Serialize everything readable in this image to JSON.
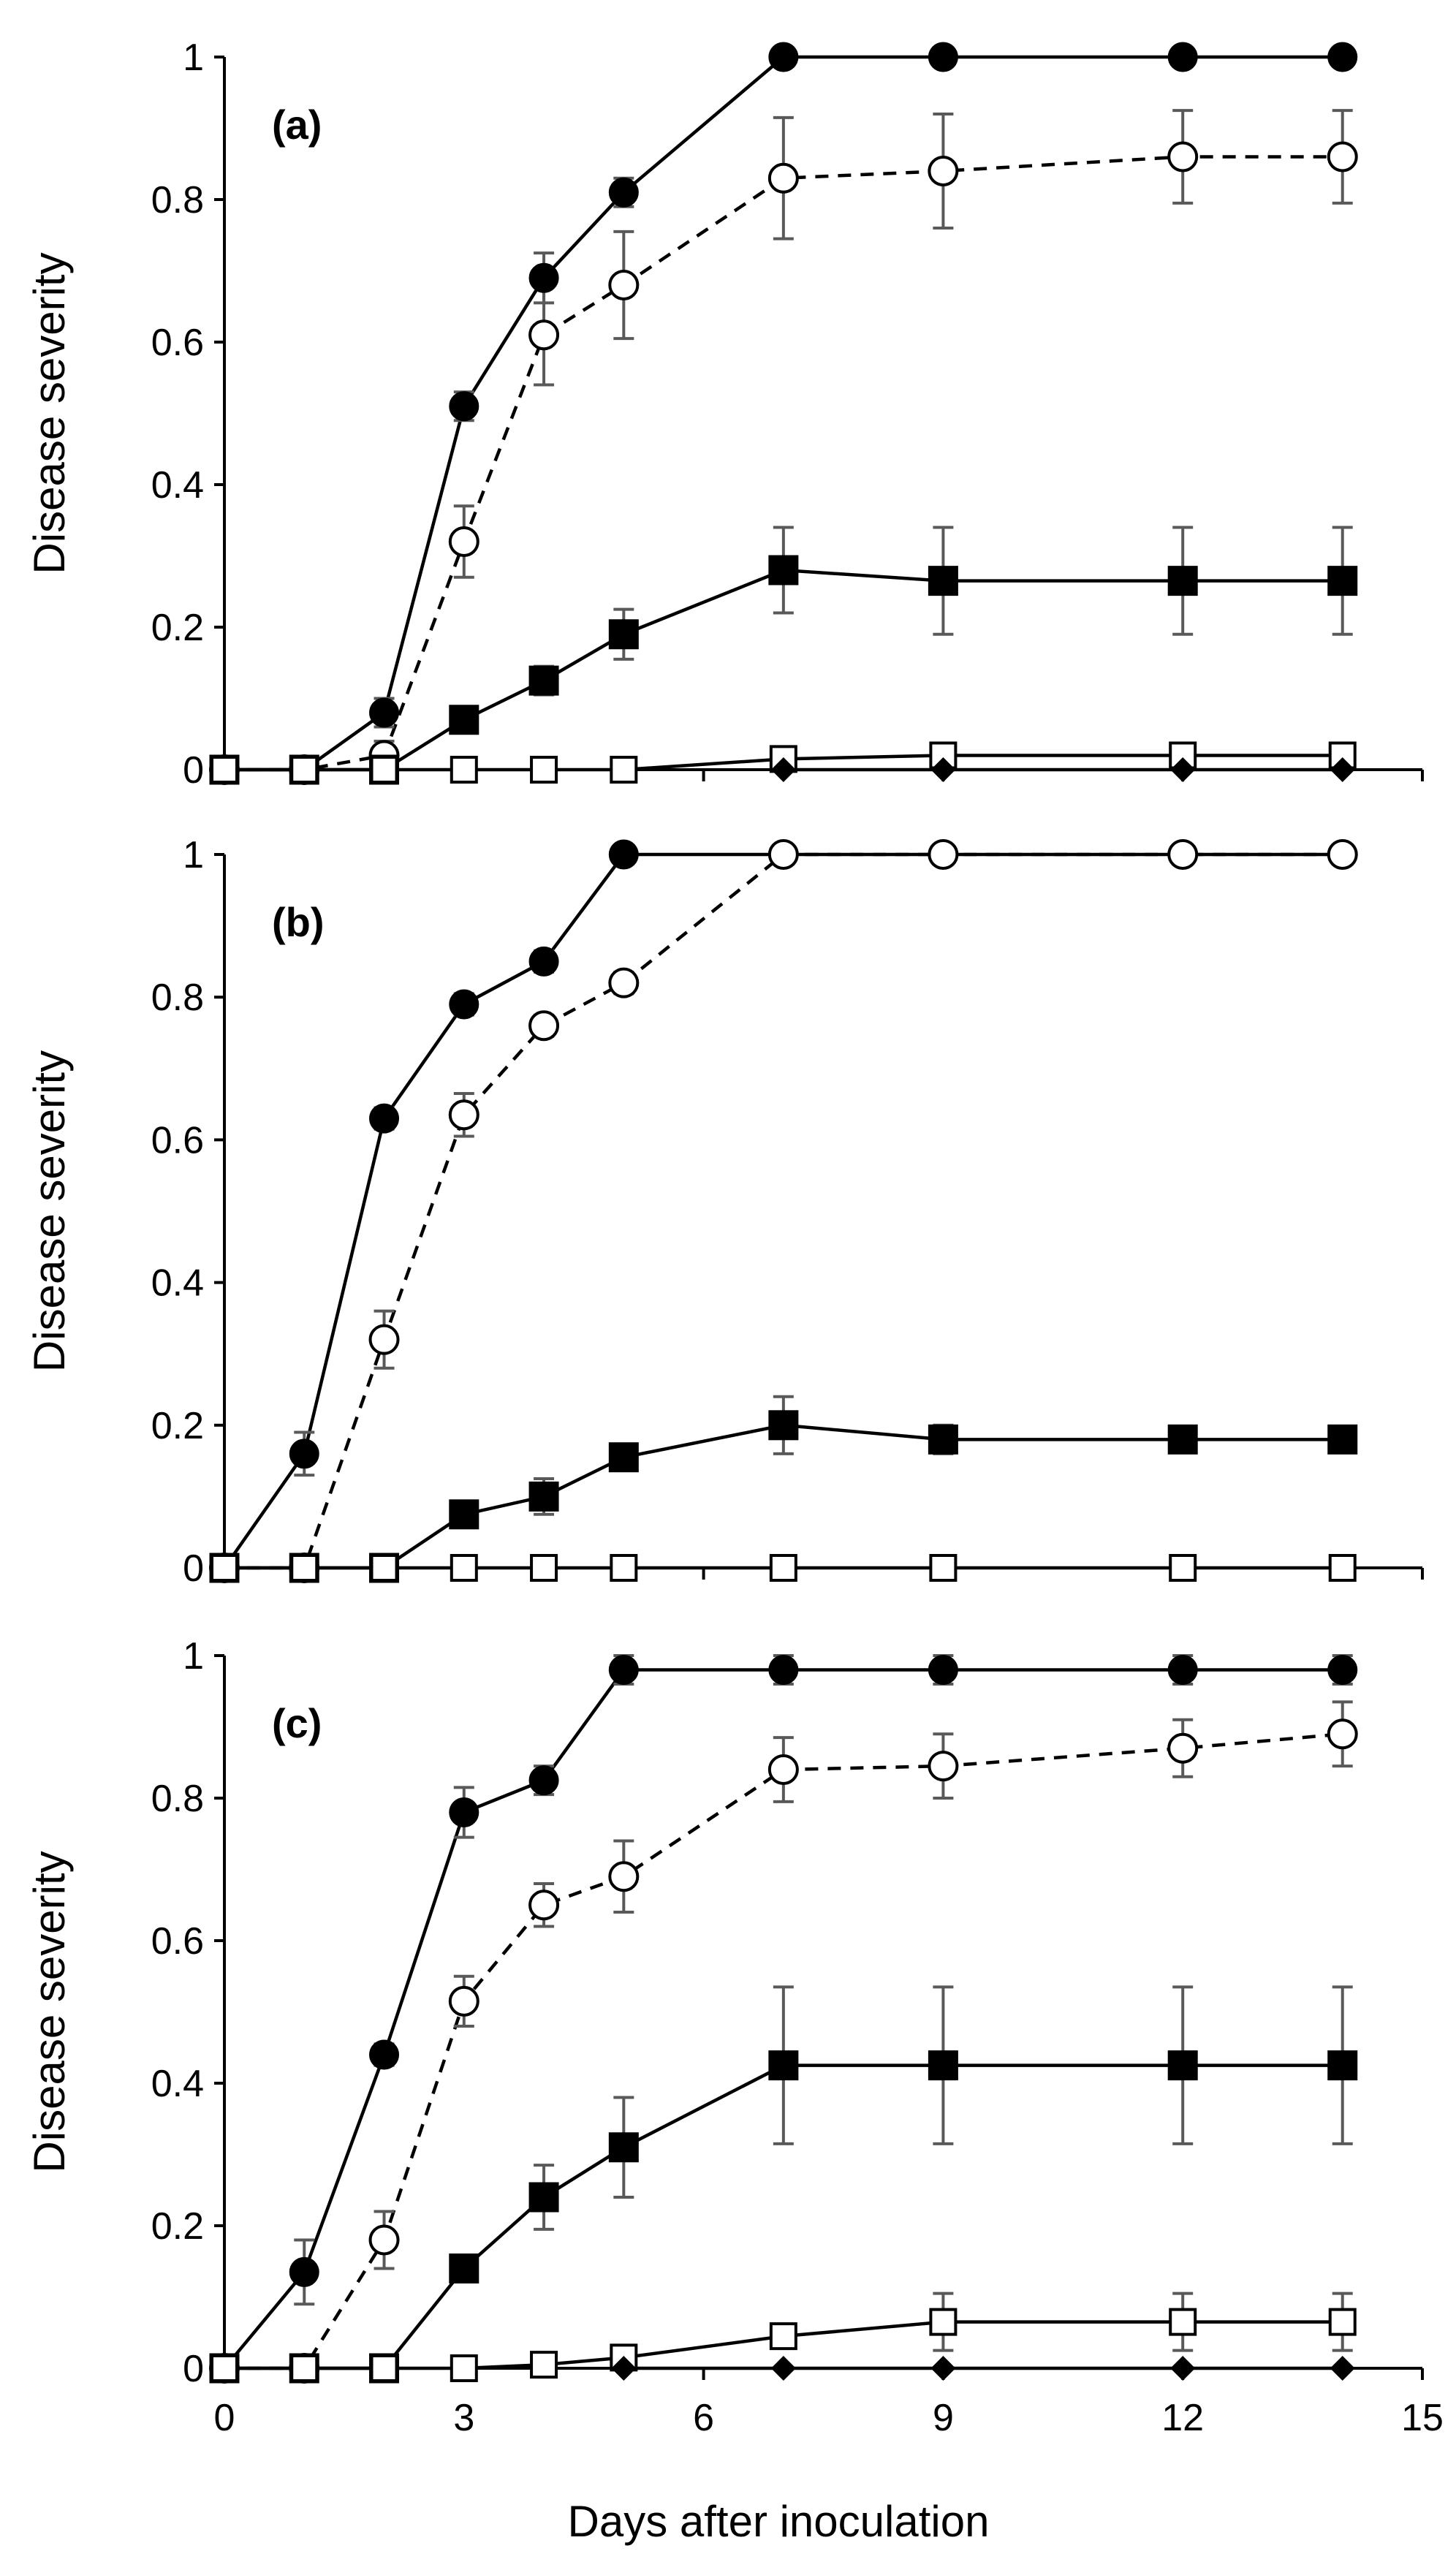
{
  "chart_data": [
    {
      "type": "line",
      "panel_label": "(a)",
      "ylabel": "Disease severity",
      "xlabel": "",
      "ylim": [
        0,
        1
      ],
      "xlim": [
        0,
        15
      ],
      "yticks": [
        "0",
        "0.2",
        "0.4",
        "0.6",
        "0.8",
        "1"
      ],
      "xticks": [],
      "x": [
        0,
        1,
        2,
        3,
        4,
        5,
        7,
        9,
        12,
        14
      ],
      "series": [
        {
          "name": "filled circle",
          "marker": "circle-filled",
          "dash": "solid",
          "values": [
            0,
            0,
            0.08,
            0.51,
            0.69,
            0.81,
            1.0,
            1.0,
            1.0,
            1.0
          ],
          "errors": [
            0,
            0,
            0.02,
            0.02,
            0.035,
            0.02,
            0,
            0,
            0,
            0
          ]
        },
        {
          "name": "open circle",
          "marker": "circle-open",
          "dash": "dashed",
          "values": [
            0,
            0,
            0.02,
            0.32,
            0.61,
            0.68,
            0.83,
            0.84,
            0.86,
            0.86
          ],
          "errors": [
            0,
            0,
            0.02,
            0.05,
            0.07,
            0.075,
            0.085,
            0.08,
            0.065,
            0.065
          ]
        },
        {
          "name": "filled square",
          "marker": "square-filled",
          "dash": "solid",
          "values": [
            0,
            0,
            0,
            0.07,
            0.125,
            0.19,
            0.28,
            0.265,
            0.265,
            0.265
          ],
          "errors": [
            0,
            0,
            0,
            0.01,
            0.02,
            0.035,
            0.06,
            0.075,
            0.075,
            0.075
          ]
        },
        {
          "name": "open square",
          "marker": "square-open",
          "dash": "solid",
          "values": [
            0,
            0,
            0,
            0,
            0,
            0,
            0.015,
            0.02,
            0.02,
            0.02
          ],
          "errors": [
            0,
            0,
            0,
            0,
            0,
            0,
            0.01,
            0.015,
            0.015,
            0.015
          ]
        },
        {
          "name": "filled diamond",
          "marker": "diamond-filled",
          "dash": "solid",
          "values": [
            null,
            null,
            null,
            null,
            null,
            null,
            0,
            0,
            0,
            0
          ],
          "errors": [
            0,
            0,
            0,
            0,
            0,
            0,
            0,
            0,
            0,
            0
          ]
        }
      ]
    },
    {
      "type": "line",
      "panel_label": "(b)",
      "ylabel": "Disease severity",
      "xlabel": "",
      "ylim": [
        0,
        1
      ],
      "xlim": [
        0,
        15
      ],
      "yticks": [
        "0",
        "0.2",
        "0.4",
        "0.6",
        "0.8",
        "1"
      ],
      "xticks": [],
      "x": [
        0,
        1,
        2,
        3,
        4,
        5,
        7,
        9,
        12,
        14
      ],
      "series": [
        {
          "name": "filled circle",
          "marker": "circle-filled",
          "dash": "solid",
          "values": [
            0,
            0.16,
            0.63,
            0.79,
            0.85,
            1.0,
            1.0,
            1.0,
            1.0,
            1.0
          ],
          "errors": [
            0,
            0.03,
            0.015,
            0.015,
            0.015,
            0,
            0,
            0,
            0,
            0
          ]
        },
        {
          "name": "open circle",
          "marker": "circle-open",
          "dash": "dashed",
          "values": [
            0,
            0,
            0.32,
            0.635,
            0.76,
            0.82,
            1.0,
            1.0,
            1.0,
            1.0
          ],
          "errors": [
            0,
            0,
            0.04,
            0.03,
            0.015,
            0.015,
            0,
            0,
            0,
            0
          ]
        },
        {
          "name": "filled square",
          "marker": "square-filled",
          "dash": "solid",
          "values": [
            0,
            0,
            0,
            0.075,
            0.1,
            0.155,
            0.2,
            0.18,
            0.18,
            0.18
          ],
          "errors": [
            0,
            0,
            0,
            0.01,
            0.025,
            0.01,
            0.04,
            0.02,
            0.015,
            0.015
          ]
        },
        {
          "name": "open square",
          "marker": "square-open",
          "dash": "solid",
          "values": [
            0,
            0,
            0,
            0,
            0,
            0,
            0,
            0,
            0,
            0
          ],
          "errors": [
            0,
            0,
            0,
            0,
            0,
            0,
            0,
            0,
            0,
            0
          ]
        }
      ]
    },
    {
      "type": "line",
      "panel_label": "(c)",
      "ylabel": "Disease severity",
      "xlabel": "Days after inoculation",
      "ylim": [
        0,
        1
      ],
      "xlim": [
        0,
        15
      ],
      "yticks": [
        "0",
        "0.2",
        "0.4",
        "0.6",
        "0.8",
        "1"
      ],
      "xticks": [
        "0",
        "3",
        "6",
        "9",
        "12",
        "15"
      ],
      "x": [
        0,
        1,
        2,
        3,
        4,
        5,
        7,
        9,
        12,
        14
      ],
      "series": [
        {
          "name": "filled circle",
          "marker": "circle-filled",
          "dash": "solid",
          "values": [
            0,
            0.135,
            0.44,
            0.78,
            0.825,
            0.98,
            0.98,
            0.98,
            0.98,
            0.98
          ],
          "errors": [
            0,
            0.045,
            0.015,
            0.035,
            0.02,
            0.02,
            0.02,
            0.02,
            0.02,
            0.02
          ]
        },
        {
          "name": "open circle",
          "marker": "circle-open",
          "dash": "dashed",
          "values": [
            0,
            0,
            0.18,
            0.515,
            0.65,
            0.69,
            0.84,
            0.845,
            0.87,
            0.89
          ],
          "errors": [
            0,
            0,
            0.04,
            0.035,
            0.03,
            0.05,
            0.045,
            0.045,
            0.04,
            0.045
          ]
        },
        {
          "name": "filled square",
          "marker": "square-filled",
          "dash": "solid",
          "values": [
            0,
            0,
            0,
            0.14,
            0.24,
            0.31,
            0.425,
            0.425,
            0.425,
            0.425
          ],
          "errors": [
            0,
            0,
            0,
            0.01,
            0.045,
            0.07,
            0.11,
            0.11,
            0.11,
            0.11
          ]
        },
        {
          "name": "open square",
          "marker": "square-open",
          "dash": "solid",
          "values": [
            0,
            0,
            0,
            0,
            0.005,
            0.015,
            0.045,
            0.065,
            0.065,
            0.065
          ],
          "errors": [
            0,
            0,
            0,
            0,
            0.005,
            0.01,
            0.015,
            0.04,
            0.04,
            0.04
          ]
        },
        {
          "name": "filled diamond",
          "marker": "diamond-filled",
          "dash": "solid",
          "values": [
            null,
            null,
            null,
            null,
            null,
            0,
            0,
            0,
            0,
            0
          ],
          "errors": [
            0,
            0,
            0,
            0,
            0,
            0,
            0,
            0,
            0,
            0
          ]
        }
      ]
    }
  ]
}
